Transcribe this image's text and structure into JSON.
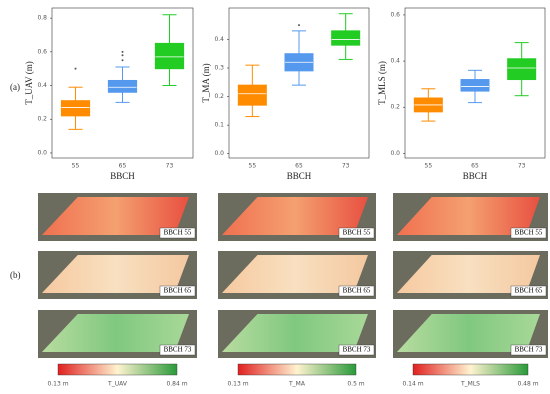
{
  "chart_data": [
    {
      "type": "box",
      "ylabel": "T_UAV (m)",
      "xlabel": "BBCH",
      "categories": [
        "55",
        "65",
        "73"
      ],
      "colors": [
        "#ff8c00",
        "#5599ee",
        "#22cc22"
      ],
      "low": [
        0.14,
        0.3,
        0.4
      ],
      "q1": [
        0.22,
        0.36,
        0.5
      ],
      "median": [
        0.27,
        0.39,
        0.57
      ],
      "q3": [
        0.31,
        0.43,
        0.65
      ],
      "high": [
        0.39,
        0.51,
        0.82
      ],
      "outliers": [
        [
          0.5
        ],
        [
          0.55,
          0.58,
          0.6
        ],
        []
      ],
      "ylim": [
        -0.03,
        0.86
      ],
      "yticks": [
        {
          "value": 0,
          "label": "0.0"
        },
        0.2,
        0.4,
        0.6,
        0.8
      ]
    },
    {
      "type": "box",
      "ylabel": "T_MA (m)",
      "xlabel": "BBCH",
      "categories": [
        "55",
        "65",
        "73"
      ],
      "colors": [
        "#ff8c00",
        "#5599ee",
        "#22cc22"
      ],
      "low": [
        0.13,
        0.24,
        0.33
      ],
      "q1": [
        0.17,
        0.29,
        0.38
      ],
      "median": [
        0.21,
        0.32,
        0.4
      ],
      "q3": [
        0.24,
        0.35,
        0.43
      ],
      "high": [
        0.31,
        0.43,
        0.49
      ],
      "outliers": [
        [],
        [
          0.45
        ],
        []
      ],
      "ylim": [
        -0.015,
        0.51
      ],
      "yticks": [
        {
          "value": 0,
          "label": "0.0"
        },
        0.1,
        0.2,
        0.3,
        0.4
      ]
    },
    {
      "type": "box",
      "ylabel": "T_MLS (m)",
      "xlabel": "BBCH",
      "categories": [
        "55",
        "65",
        "73"
      ],
      "colors": [
        "#ff8c00",
        "#5599ee",
        "#22cc22"
      ],
      "low": [
        0.14,
        0.22,
        0.25
      ],
      "q1": [
        0.18,
        0.27,
        0.32
      ],
      "median": [
        0.21,
        0.29,
        0.37
      ],
      "q3": [
        0.24,
        0.32,
        0.41
      ],
      "high": [
        0.28,
        0.36,
        0.48
      ],
      "outliers": [
        [],
        [],
        []
      ],
      "ylim": [
        -0.02,
        0.63
      ],
      "yticks": [
        {
          "value": 0,
          "label": "0.0"
        },
        0.2,
        0.4,
        0.6
      ]
    }
  ],
  "panel_labels": [
    "(a)",
    "(b)"
  ],
  "map_labels": [
    "BBCH 55",
    "BBCH 65",
    "BBCH 73"
  ],
  "colorbars": [
    {
      "min": "0.13 m",
      "title": "T_UAV",
      "max": "0.84 m"
    },
    {
      "min": "0.13 m",
      "title": "T_MA",
      "max": "0.5 m"
    },
    {
      "min": "0.14 m",
      "title": "T_MLS",
      "max": "0.48 m"
    }
  ]
}
